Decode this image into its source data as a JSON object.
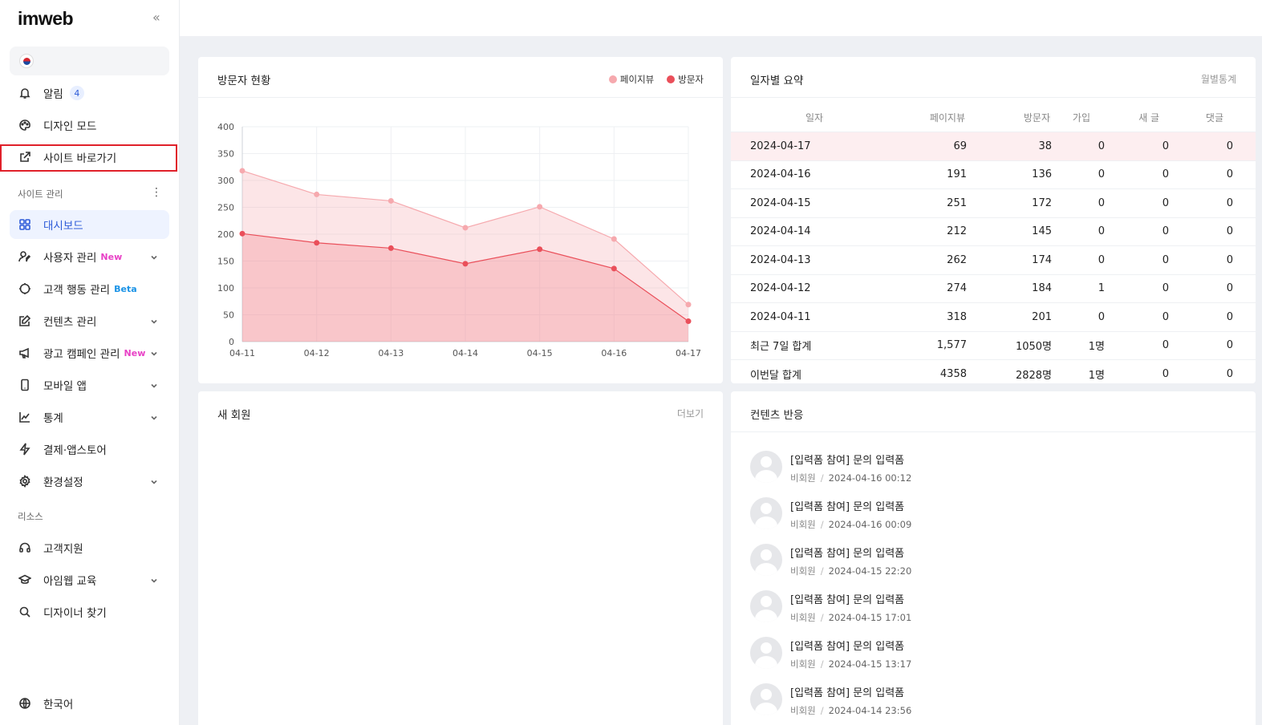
{
  "logo": "imweb",
  "sidebar": {
    "collapse_icon": "double-chevron-left-icon",
    "top_items": [
      {
        "label": "알림",
        "badge": "4"
      },
      {
        "label": "디자인 모드"
      },
      {
        "label": "사이트 바로가기"
      }
    ],
    "site_section_label": "사이트 관리",
    "site_items": [
      {
        "label": "대시보드",
        "active": true
      },
      {
        "label": "사용자 관리",
        "tag": "New"
      },
      {
        "label": "고객 행동 관리",
        "tag": "Beta"
      },
      {
        "label": "컨텐츠 관리"
      },
      {
        "label": "광고 캠페인 관리",
        "tag": "New"
      },
      {
        "label": "모바일 앱"
      },
      {
        "label": "통계"
      },
      {
        "label": "결제·앱스토어"
      },
      {
        "label": "환경설정"
      }
    ],
    "resource_section_label": "리소스",
    "resource_items": [
      {
        "label": "고객지원"
      },
      {
        "label": "아임웹 교육"
      },
      {
        "label": "디자이너 찾기"
      }
    ],
    "language": "한국어"
  },
  "visitor_card": {
    "title": "방문자 현황",
    "legend": [
      "페이지뷰",
      "방문자"
    ]
  },
  "chart_data": {
    "type": "area",
    "categories": [
      "04-11",
      "04-12",
      "04-13",
      "04-14",
      "04-15",
      "04-16",
      "04-17"
    ],
    "series": [
      {
        "name": "페이지뷰",
        "values": [
          318,
          274,
          262,
          212,
          251,
          191,
          69
        ],
        "color": "#f6a9ae"
      },
      {
        "name": "방문자",
        "values": [
          201,
          184,
          174,
          145,
          172,
          136,
          38
        ],
        "color": "#ea4f5a"
      }
    ],
    "ylim": [
      0,
      400
    ],
    "yticks": [
      "0",
      "50",
      "100",
      "150",
      "200",
      "250",
      "300",
      "350",
      "400"
    ],
    "grid": true
  },
  "summary_card": {
    "title": "일자별 요약",
    "link": "월별통계",
    "headers": [
      "일자",
      "페이지뷰",
      "방문자",
      "가입",
      "새 글",
      "댓글"
    ],
    "rows": [
      [
        "2024-04-17",
        "69",
        "38",
        "0",
        "0",
        "0"
      ],
      [
        "2024-04-16",
        "191",
        "136",
        "0",
        "0",
        "0"
      ],
      [
        "2024-04-15",
        "251",
        "172",
        "0",
        "0",
        "0"
      ],
      [
        "2024-04-14",
        "212",
        "145",
        "0",
        "0",
        "0"
      ],
      [
        "2024-04-13",
        "262",
        "174",
        "0",
        "0",
        "0"
      ],
      [
        "2024-04-12",
        "274",
        "184",
        "1",
        "0",
        "0"
      ],
      [
        "2024-04-11",
        "318",
        "201",
        "0",
        "0",
        "0"
      ],
      [
        "최근 7일 합계",
        "1,577",
        "1050명",
        "1명",
        "0",
        "0"
      ],
      [
        "이번달 합계",
        "4358",
        "2828명",
        "1명",
        "0",
        "0"
      ]
    ]
  },
  "members_card": {
    "title": "새 회원",
    "link": "더보기"
  },
  "content_card": {
    "title": "컨텐츠 반응",
    "items": [
      {
        "title": "[입력폼 참여] 문의 입력폼",
        "author": "비회원",
        "date": "2024-04-16 00:12"
      },
      {
        "title": "[입력폼 참여] 문의 입력폼",
        "author": "비회원",
        "date": "2024-04-16 00:09"
      },
      {
        "title": "[입력폼 참여] 문의 입력폼",
        "author": "비회원",
        "date": "2024-04-15 22:20"
      },
      {
        "title": "[입력폼 참여] 문의 입력폼",
        "author": "비회원",
        "date": "2024-04-15 17:01"
      },
      {
        "title": "[입력폼 참여] 문의 입력폼",
        "author": "비회원",
        "date": "2024-04-15 13:17"
      },
      {
        "title": "[입력폼 참여] 문의 입력폼",
        "author": "비회원",
        "date": "2024-04-14 23:56"
      }
    ]
  }
}
